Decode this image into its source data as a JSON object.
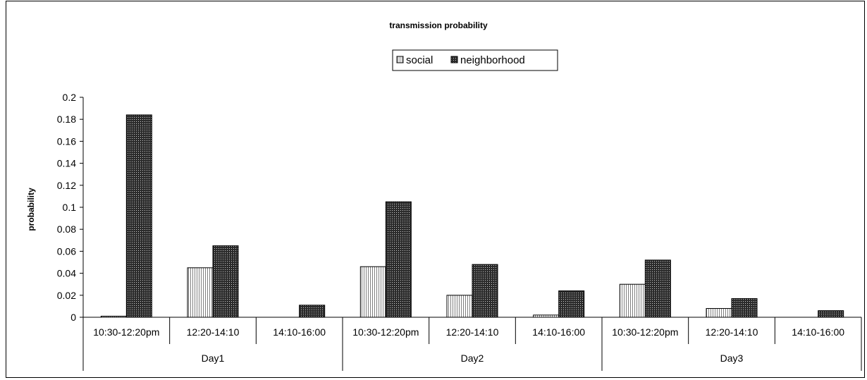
{
  "chart_data": {
    "type": "bar",
    "title": "transmission probability",
    "xlabel": "",
    "ylabel": "probability",
    "ylim": [
      0,
      0.2
    ],
    "yticks": [
      "0",
      "0.02",
      "0.04",
      "0.06",
      "0.08",
      "0.1",
      "0.12",
      "0.14",
      "0.16",
      "0.18",
      "0.2"
    ],
    "grid": false,
    "legend_position": "top-center",
    "categories": [
      "10:30-12:20pm",
      "12:20-14:10",
      "14:10-16:00",
      "10:30-12:20pm",
      "12:20-14:10",
      "14:10-16:00",
      "10:30-12:20pm",
      "12:20-14:10",
      "14:10-16:00"
    ],
    "groups": [
      {
        "label": "Day1",
        "count": 3
      },
      {
        "label": "Day2",
        "count": 3
      },
      {
        "label": "Day3",
        "count": 3
      }
    ],
    "series": [
      {
        "name": "social",
        "pattern": "vertical-stripes",
        "values": [
          0.001,
          0.045,
          0.0,
          0.046,
          0.02,
          0.002,
          0.03,
          0.008,
          0.0
        ]
      },
      {
        "name": "neighborhood",
        "pattern": "dotted-dark",
        "values": [
          0.184,
          0.065,
          0.011,
          0.105,
          0.048,
          0.024,
          0.052,
          0.017,
          0.006
        ]
      }
    ]
  }
}
